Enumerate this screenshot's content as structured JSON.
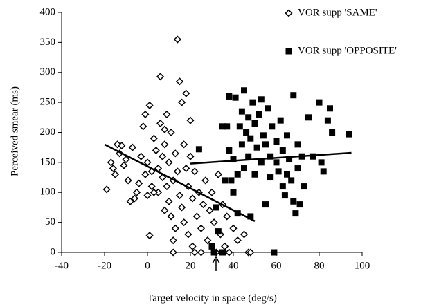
{
  "chart_data": {
    "type": "scatter",
    "x_label": "Target velocity in space (deg/s)",
    "y_label": "Perceived smear (ms)",
    "xlim": [
      -40,
      100
    ],
    "xticks": [
      -40,
      -20,
      0,
      20,
      40,
      60,
      80,
      100
    ],
    "ylim": [
      0,
      400
    ],
    "yticks": [
      0,
      50,
      100,
      150,
      200,
      250,
      300,
      350,
      400
    ],
    "legend": "top-right",
    "series": [
      {
        "name": "VOR supp 'SAME'",
        "color": "#000000",
        "marker": "diamond",
        "x": [
          -19,
          -17,
          -16,
          -15,
          -14,
          -13,
          -12,
          -11,
          -10,
          -9,
          -8,
          -7,
          -6,
          -5,
          -4,
          -3,
          -2,
          -1,
          0,
          0,
          1,
          1,
          2,
          2,
          3,
          4,
          5,
          5,
          6,
          6,
          7,
          7,
          8,
          8,
          9,
          9,
          10,
          10,
          11,
          11,
          12,
          12,
          13,
          13,
          14,
          14,
          15,
          15,
          16,
          16,
          17,
          17,
          18,
          18,
          19,
          19,
          20,
          20,
          21,
          21,
          22,
          23,
          24,
          25,
          25,
          26,
          27,
          28,
          29,
          30,
          31,
          32,
          33,
          34,
          35,
          36,
          37,
          38,
          40,
          42,
          45,
          47,
          48,
          12,
          3,
          -1,
          8,
          22
        ],
        "values": [
          105,
          150,
          140,
          130,
          180,
          165,
          178,
          145,
          155,
          120,
          85,
          175,
          90,
          100,
          115,
          160,
          210,
          230,
          150,
          95,
          28,
          245,
          135,
          110,
          190,
          170,
          140,
          100,
          293,
          215,
          160,
          125,
          180,
          70,
          230,
          110,
          150,
          85,
          60,
          200,
          20,
          120,
          40,
          165,
          355,
          135,
          285,
          95,
          250,
          75,
          180,
          50,
          265,
          140,
          110,
          30,
          220,
          160,
          90,
          10,
          135,
          60,
          100,
          0,
          40,
          80,
          120,
          20,
          70,
          100,
          50,
          0,
          130,
          30,
          80,
          10,
          60,
          0,
          40,
          20,
          30,
          0,
          0,
          0,
          100,
          130,
          205,
          0
        ],
        "fit": {
          "x": [
            -20,
            50
          ],
          "y": [
            180,
            52
          ]
        }
      },
      {
        "name": "VOR supp 'OPPOSITE'",
        "color": "#000000",
        "marker": "square",
        "x": [
          30,
          31,
          32,
          33,
          35,
          36,
          37,
          38,
          38,
          39,
          40,
          40,
          41,
          42,
          43,
          44,
          44,
          45,
          45,
          46,
          47,
          47,
          48,
          48,
          49,
          50,
          50,
          51,
          52,
          53,
          53,
          54,
          55,
          56,
          57,
          57,
          58,
          59,
          60,
          60,
          61,
          62,
          63,
          63,
          64,
          65,
          65,
          66,
          67,
          68,
          68,
          69,
          70,
          70,
          71,
          72,
          73,
          75,
          77,
          80,
          81,
          82,
          84,
          85,
          86,
          94,
          24,
          35,
          42,
          55
        ],
        "values": [
          10,
          0,
          75,
          35,
          0,
          120,
          210,
          170,
          260,
          120,
          155,
          100,
          258,
          65,
          210,
          180,
          235,
          270,
          140,
          200,
          160,
          225,
          190,
          60,
          250,
          130,
          215,
          175,
          230,
          255,
          150,
          195,
          180,
          240,
          125,
          160,
          210,
          0,
          150,
          185,
          135,
          220,
          110,
          170,
          95,
          195,
          130,
          155,
          120,
          262,
          85,
          65,
          140,
          180,
          80,
          160,
          110,
          225,
          160,
          250,
          150,
          135,
          220,
          240,
          200,
          197,
          172,
          210,
          130,
          80
        ],
        "fit": {
          "x": [
            20,
            95
          ],
          "y": [
            148,
            166
          ]
        }
      }
    ]
  }
}
